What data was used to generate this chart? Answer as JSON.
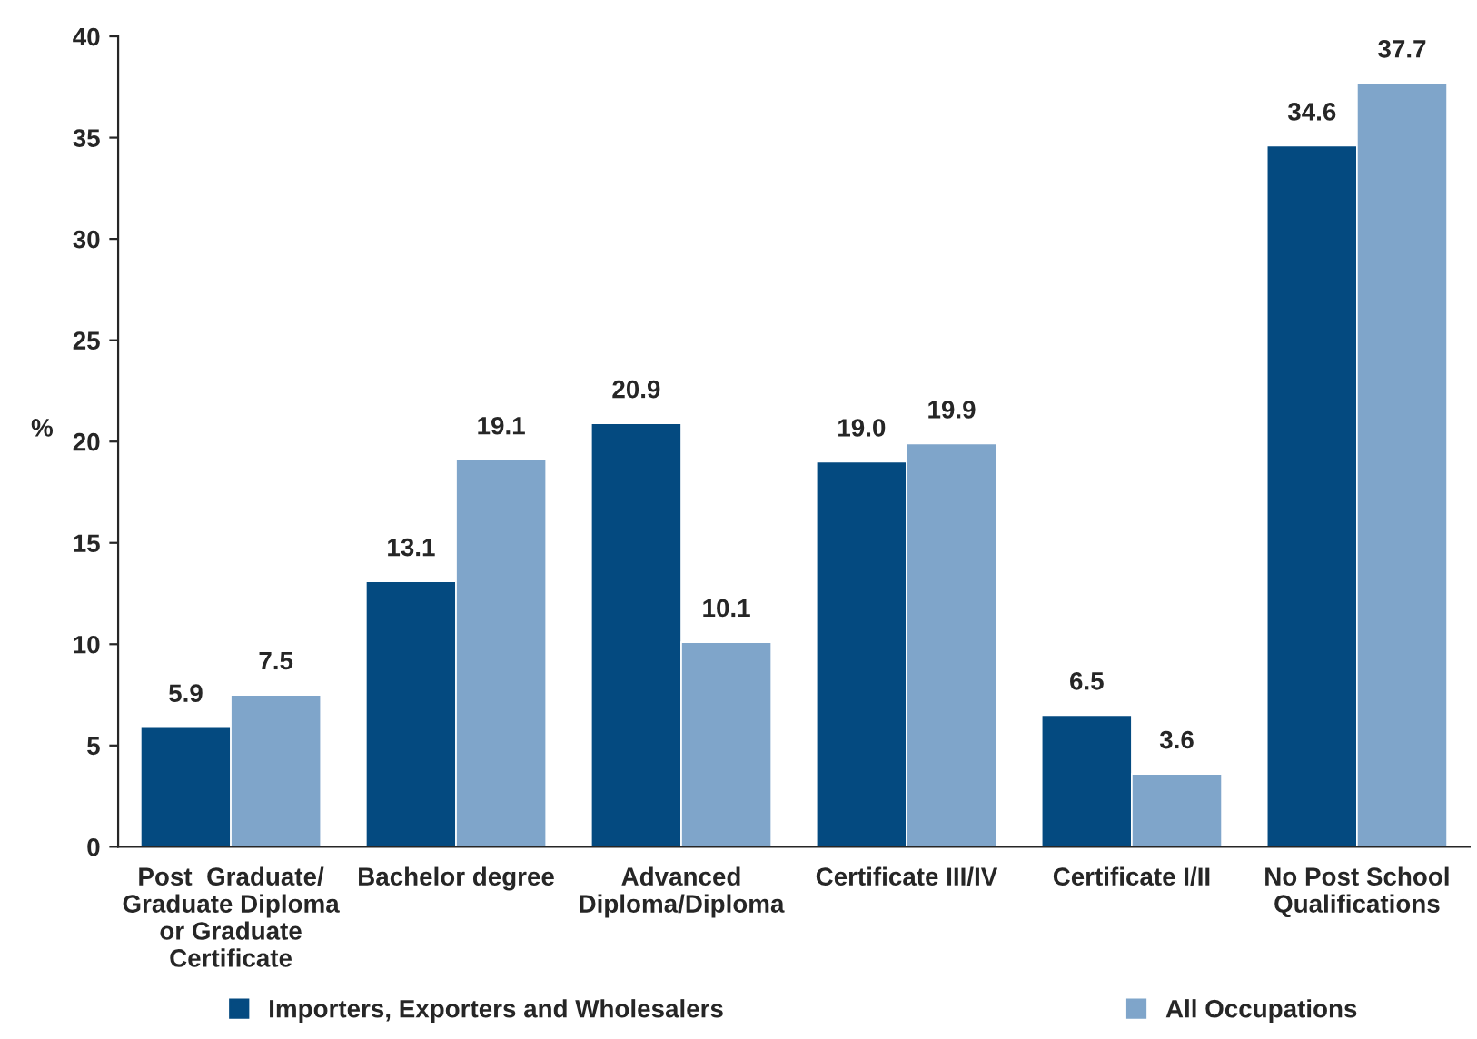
{
  "chart_data": {
    "type": "bar",
    "ylabel": "%",
    "categories": [
      "Post  Graduate/\nGraduate Diploma\nor Graduate\nCertificate",
      "Bachelor degree",
      "Advanced\nDiploma/Diploma",
      "Certificate III/IV",
      "Certificate I/II",
      "No Post School\nQualifications"
    ],
    "series": [
      {
        "name": "Importers, Exporters and Wholesalers",
        "color": "#044a80",
        "values": [
          5.9,
          13.1,
          20.9,
          19.0,
          6.5,
          34.6
        ],
        "value_labels": [
          "5.9",
          "13.1",
          "20.9",
          "19.0",
          "6.5",
          "34.6"
        ]
      },
      {
        "name": "All Occupations",
        "color": "#7fa5ca",
        "values": [
          7.5,
          19.1,
          10.1,
          19.9,
          3.6,
          37.7
        ],
        "value_labels": [
          "7.5",
          "19.1",
          "10.1",
          "19.9",
          "3.6",
          "37.7"
        ]
      }
    ],
    "ylim": [
      0,
      40
    ],
    "yticks": [
      0,
      5,
      10,
      15,
      20,
      25,
      30,
      35,
      40
    ],
    "grid": false,
    "legend": "bottom"
  }
}
